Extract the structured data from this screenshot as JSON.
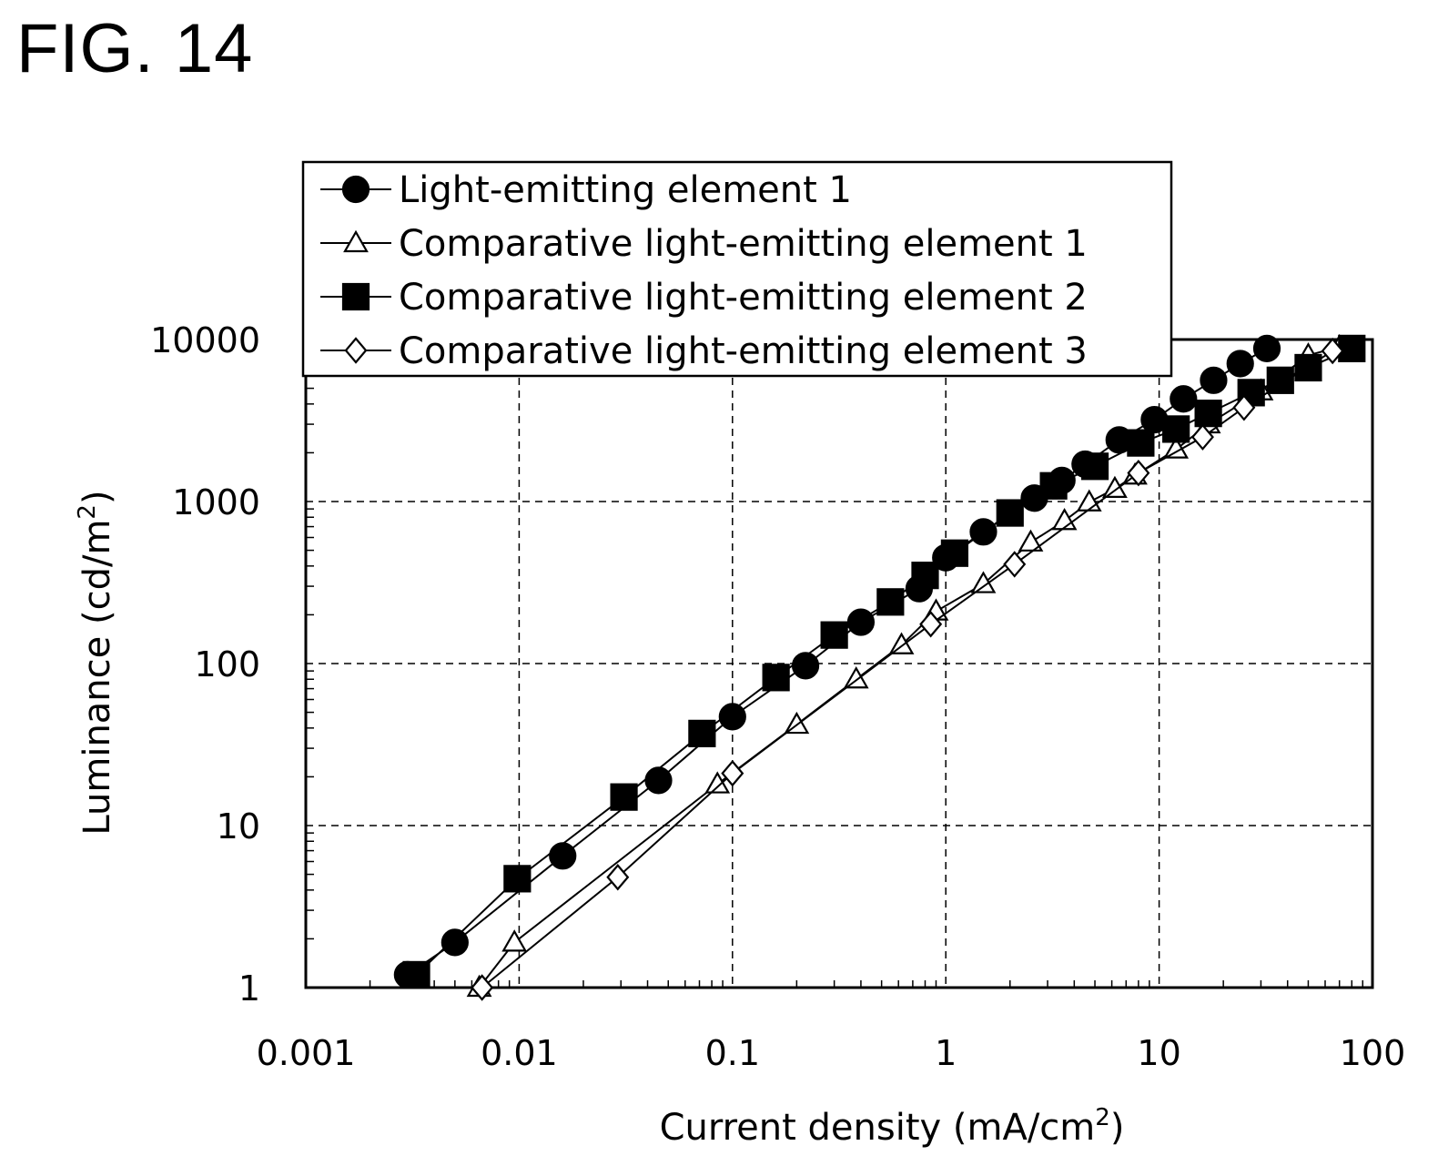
{
  "figure": {
    "title": "FIG. 14"
  },
  "chart_data": {
    "type": "scatter",
    "title": "",
    "xlabel": "Current density (mA/cm",
    "xlabel_sup": "2",
    "xlabel_end": ")",
    "ylabel": "Luminance (cd/m",
    "ylabel_sup": "2",
    "ylabel_end": ")",
    "x_scale": "log",
    "y_scale": "log",
    "xlim": [
      0.001,
      100
    ],
    "ylim": [
      1,
      10000
    ],
    "x_ticks": [
      "0.001",
      "0.01",
      "0.1",
      "1",
      "10",
      "100"
    ],
    "y_ticks": [
      "1",
      "10",
      "100",
      "1000",
      "10000"
    ],
    "grid": "dashed, major decades",
    "legend_position": "top",
    "series": [
      {
        "name": "Light-emitting element 1",
        "marker": "circle",
        "filled": true,
        "x": [
          0.003,
          0.005,
          0.016,
          0.045,
          0.1,
          0.22,
          0.4,
          0.75,
          1.0,
          1.5,
          2.6,
          3.5,
          4.5,
          6.5,
          9.5,
          13,
          18,
          24,
          32
        ],
        "y": [
          1.2,
          1.9,
          6.5,
          19,
          47,
          97,
          180,
          290,
          450,
          650,
          1050,
          1350,
          1700,
          2400,
          3200,
          4300,
          5600,
          7100,
          8800
        ]
      },
      {
        "name": "Comparative light-emitting element 1",
        "marker": "triangle",
        "filled": false,
        "x": [
          0.0065,
          0.0095,
          0.085,
          0.2,
          0.38,
          0.62,
          0.9,
          1.5,
          2.5,
          3.6,
          4.7,
          6.2,
          7.7,
          12,
          17,
          30,
          50,
          70
        ],
        "y": [
          1.0,
          1.9,
          18,
          42,
          80,
          130,
          210,
          310,
          560,
          760,
          990,
          1200,
          1450,
          2100,
          3000,
          4800,
          8000,
          9000
        ]
      },
      {
        "name": "Comparative light-emitting element 2",
        "marker": "square",
        "filled": true,
        "x": [
          0.0033,
          0.0098,
          0.031,
          0.072,
          0.16,
          0.3,
          0.55,
          0.8,
          1.1,
          2.0,
          3.2,
          5.0,
          8.2,
          12,
          17,
          27,
          37,
          50,
          80
        ],
        "y": [
          1.2,
          4.7,
          15,
          37,
          82,
          150,
          240,
          350,
          480,
          850,
          1250,
          1650,
          2300,
          2800,
          3500,
          4700,
          5600,
          6700,
          8800
        ]
      },
      {
        "name": "Comparative light-emitting element 3",
        "marker": "diamond",
        "filled": false,
        "x": [
          0.0067,
          0.029,
          0.1,
          0.85,
          2.1,
          8.0,
          16,
          25,
          65
        ],
        "y": [
          1.0,
          4.8,
          21,
          175,
          410,
          1500,
          2500,
          3800,
          8500
        ]
      }
    ]
  }
}
